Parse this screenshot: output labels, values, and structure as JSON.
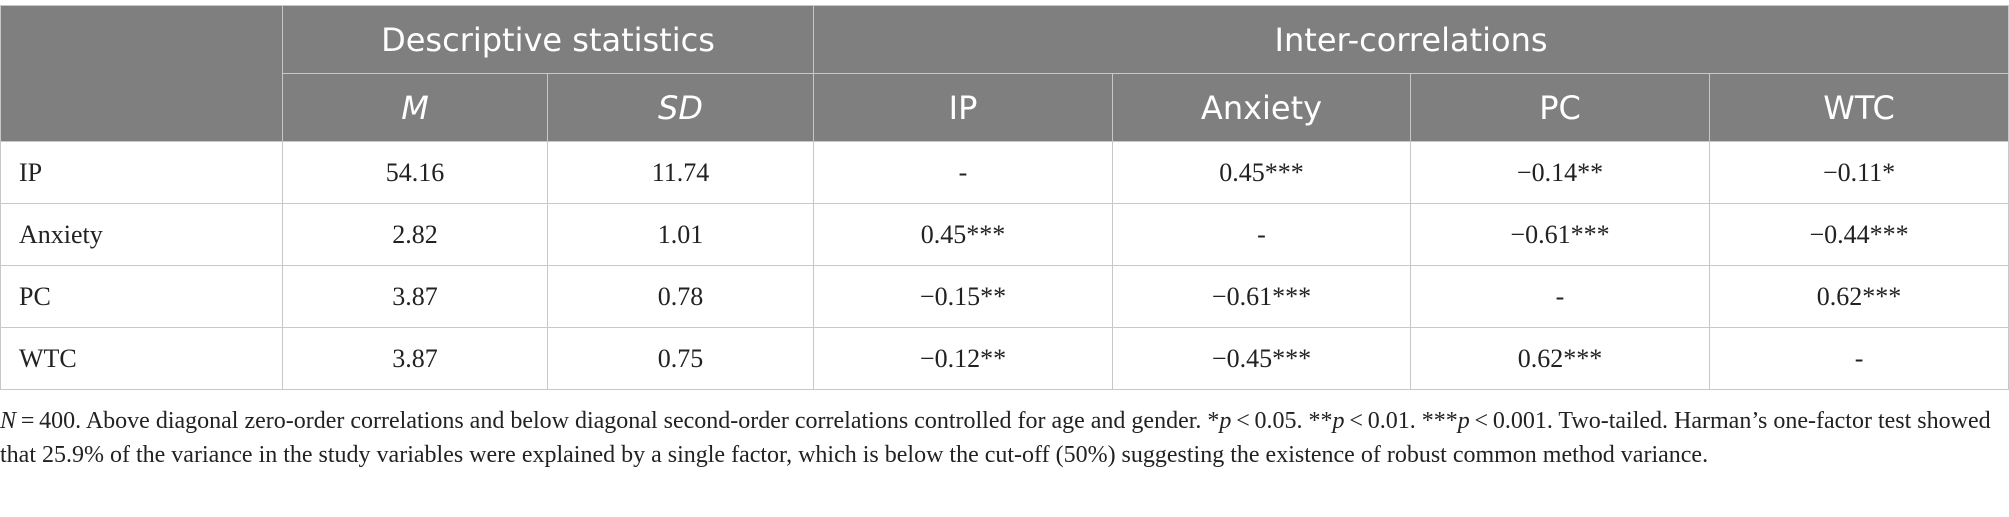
{
  "table": {
    "group_headers": [
      "Descriptive statistics",
      "Inter-correlations"
    ],
    "column_headers": [
      "M",
      "SD",
      "IP",
      "Anxiety",
      "PC",
      "WTC"
    ],
    "rows": [
      [
        "IP",
        "54.16",
        "11.74",
        "-",
        "0.45***",
        "−0.14**",
        "−0.11*"
      ],
      [
        "Anxiety",
        "2.82",
        "1.01",
        "0.45***",
        "-",
        "−0.61***",
        "−0.44***"
      ],
      [
        "PC",
        "3.87",
        "0.78",
        "−0.15**",
        "−0.61***",
        "-",
        "0.62***"
      ],
      [
        "WTC",
        "3.87",
        "0.75",
        "−0.12**",
        "−0.45***",
        "0.62***",
        "-"
      ]
    ]
  },
  "note": [
    "N",
    " = 400. Above diagonal zero-order correlations and below diagonal second-order correlations controlled for age and gender. *",
    "p",
    " < 0.05. **",
    "p",
    " < 0.01. ***",
    "p",
    " < 0.001. Two-tailed. Harman’s one-factor test showed that 25.9% of the variance in the study variables were explained by a single factor, which is below the cut-off (50%) suggesting the existence of robust common method variance."
  ]
}
